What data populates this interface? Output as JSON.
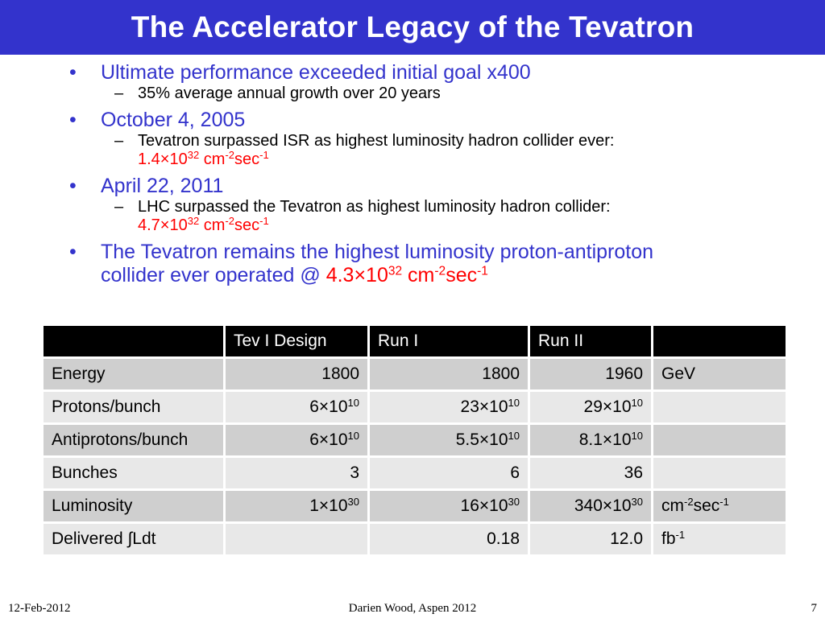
{
  "slide": {
    "title": "The Accelerator Legacy of the Tevatron",
    "bullets": {
      "b1": "Ultimate performance exceeded initial goal x400",
      "b1_sub": "35% average annual growth over 20 years",
      "b2": "October 4, 2005",
      "b2_sub": "Tevatron surpassed ISR as highest luminosity hadron collider ever:",
      "b2_value": "1.4×10",
      "b3": "April 22, 2011",
      "b3_sub": "LHC surpassed the Tevatron as highest luminosity hadron collider:",
      "b3_value": "4.7×10",
      "b4_line1": "The Tevatron remains the highest luminosity proton-antiproton",
      "b4_line2": "collider ever operated @ ",
      "b4_value": "4.3×10",
      "exp32": "32",
      "cm": " cm",
      "sec": "sec",
      "exp_neg2": "-2",
      "exp_neg1": "-1"
    },
    "bullet_glyph": "•",
    "dash_glyph": "–",
    "colors": {
      "title_bg": "#3333cc",
      "bullet_text": "#3333cc",
      "highlight": "#ff0000",
      "table_header": "#000000",
      "row_dark": "#cfcfcf",
      "row_light": "#e8e8e8"
    }
  },
  "table": {
    "headers": [
      "",
      "Tev I Design",
      "Run I",
      "Run II",
      ""
    ],
    "rows": [
      {
        "label": "Energy",
        "c1": "1800",
        "c2": "1800",
        "c3": "1960",
        "unit": "GeV"
      },
      {
        "label": "Protons/bunch",
        "c1": "6×10",
        "c1_exp": "10",
        "c2": "23×10",
        "c2_exp": "10",
        "c3": "29×10",
        "c3_exp": "10",
        "unit": ""
      },
      {
        "label": "Antiprotons/bunch",
        "c1": "6×10",
        "c1_exp": "10",
        "c2": "5.5×10",
        "c2_exp": "10",
        "c3": "8.1×10",
        "c3_exp": "10",
        "unit": ""
      },
      {
        "label": "Bunches",
        "c1": "3",
        "c2": "6",
        "c3": "36",
        "unit": ""
      },
      {
        "label": "Luminosity",
        "c1": "1×10",
        "c1_exp": "30",
        "c2": "16×10",
        "c2_exp": "30",
        "c3": "340×10",
        "c3_exp": "30",
        "unit_a": "cm",
        "unit_a_exp": "-2",
        "unit_b": "sec",
        "unit_b_exp": "-1"
      },
      {
        "label": "Delivered ∫Ldt",
        "c1": "",
        "c2": "0.18",
        "c3": "12.0",
        "unit_a": "fb",
        "unit_a_exp": "-1"
      }
    ]
  },
  "footer": {
    "date": "12-Feb-2012",
    "author": "Darien Wood, Aspen 2012",
    "page": "7"
  }
}
